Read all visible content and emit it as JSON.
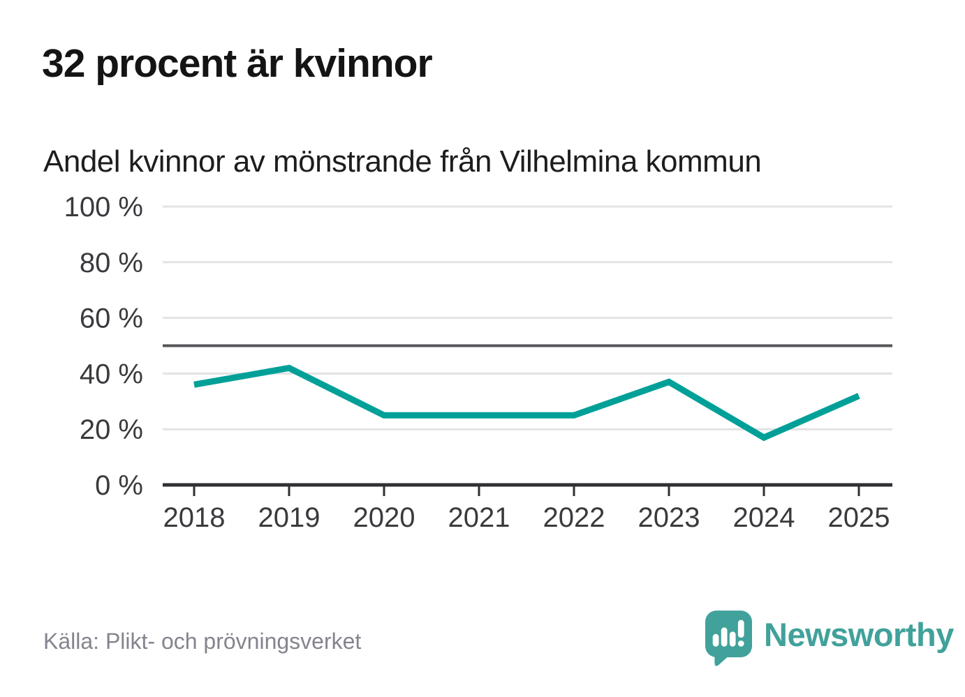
{
  "header": {
    "title": "32 procent är kvinnor",
    "subtitle": "Andel kvinnor av mönstrande från Vilhelmina kommun"
  },
  "chart_data": {
    "type": "line",
    "title": "32 procent är kvinnor",
    "subtitle": "Andel kvinnor av mönstrande från Vilhelmina kommun",
    "categories": [
      "2018",
      "2019",
      "2020",
      "2021",
      "2022",
      "2023",
      "2024",
      "2025"
    ],
    "values": [
      36,
      42,
      25,
      25,
      25,
      37,
      17,
      32
    ],
    "unit": "%",
    "xlabel": "",
    "ylabel": "",
    "ylim": [
      0,
      100
    ],
    "yticks": [
      0,
      20,
      40,
      60,
      80,
      100
    ],
    "ytick_labels": [
      "0 %",
      "20 %",
      "40 %",
      "60 %",
      "80 %",
      "100 %"
    ],
    "reference_line_value": 50,
    "grid": "horizontal",
    "legend": "none"
  },
  "footer": {
    "source": "Källa: Plikt- och prövningsverket",
    "logo_text": "Newsworthy",
    "logo_icon": "speech-bubble-bar-chart-exclamation"
  },
  "colors": {
    "line": "#00a098",
    "reference_line": "#55555a",
    "gridline": "#e3e3e3",
    "axis": "#303034",
    "tick_label": "#3a3a3e",
    "title": "#141414",
    "subtitle": "#1d1d1d",
    "source": "#84848e",
    "brand": "#41a19b"
  }
}
